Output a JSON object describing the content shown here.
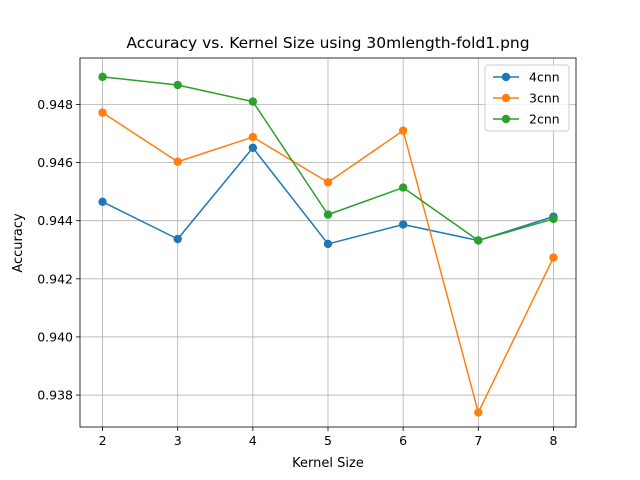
{
  "chart_data": {
    "type": "line",
    "title": "Accuracy vs. Kernel Size using 30mlength-fold1.png",
    "xlabel": "Kernel Size",
    "ylabel": "Accuracy",
    "x": [
      2,
      3,
      4,
      5,
      6,
      7,
      8
    ],
    "xlim": [
      1.7,
      8.3
    ],
    "ylim": [
      0.9369,
      0.9496
    ],
    "xticks": [
      2,
      3,
      4,
      5,
      6,
      7,
      8
    ],
    "yticks": [
      0.938,
      0.94,
      0.942,
      0.944,
      0.946,
      0.948
    ],
    "ytick_labels": [
      "0.938",
      "0.940",
      "0.942",
      "0.944",
      "0.946",
      "0.948"
    ],
    "grid": true,
    "legend_position": "top-right",
    "series": [
      {
        "name": "4cnn",
        "color": "#1f77b4",
        "values": [
          0.94465,
          0.94337,
          0.94651,
          0.9432,
          0.94387,
          0.94332,
          0.94414
        ]
      },
      {
        "name": "3cnn",
        "color": "#ff7f0e",
        "values": [
          0.94772,
          0.94603,
          0.94688,
          0.94532,
          0.9471,
          0.9374,
          0.94273
        ]
      },
      {
        "name": "2cnn",
        "color": "#2ca02c",
        "values": [
          0.94895,
          0.94867,
          0.9481,
          0.94421,
          0.94514,
          0.94332,
          0.94406
        ]
      }
    ]
  }
}
